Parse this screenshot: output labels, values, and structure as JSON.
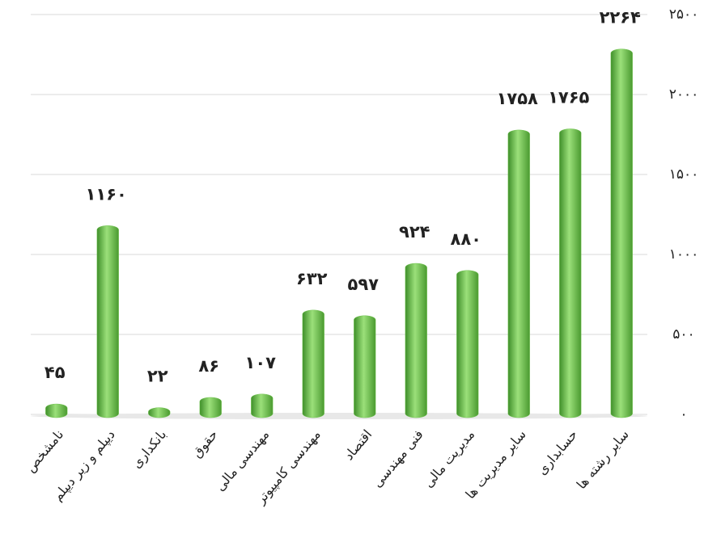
{
  "chart_data": {
    "type": "bar",
    "categories": [
      "نامشخص",
      "دیپلم و زیر دیپلم",
      "بانکداری",
      "حقوق",
      "مهندسی مالی",
      "مهندسی کامپیوتر",
      "اقتصاد",
      "فنی مهندسی",
      "مدیریت مالی",
      "سایر مدیریت ها",
      "حسابداری",
      "سایر رشته ها"
    ],
    "values": [
      45,
      1160,
      22,
      86,
      107,
      632,
      597,
      924,
      880,
      1758,
      1765,
      2264
    ],
    "value_labels": [
      "۴۵",
      "۱۱۶۰",
      "۲۲",
      "۸۶",
      "۱۰۷",
      "۶۳۲",
      "۵۹۷",
      "۹۲۴",
      "۸۸۰",
      "۱۷۵۸",
      "۱۷۶۵",
      "۲۲۶۴"
    ],
    "color": "#6cc24a",
    "ylim": [
      0,
      2500
    ],
    "yticks": [
      {
        "value": 0,
        "label": "۰"
      },
      {
        "value": 500,
        "label": "۵۰۰"
      },
      {
        "value": 1000,
        "label": "۱۰۰۰"
      },
      {
        "value": 1500,
        "label": "۱۵۰۰"
      },
      {
        "value": 2000,
        "label": "۲۰۰۰"
      },
      {
        "value": 2500,
        "label": "۲۵۰۰"
      }
    ],
    "grid": true,
    "y_axis_side": "right"
  }
}
